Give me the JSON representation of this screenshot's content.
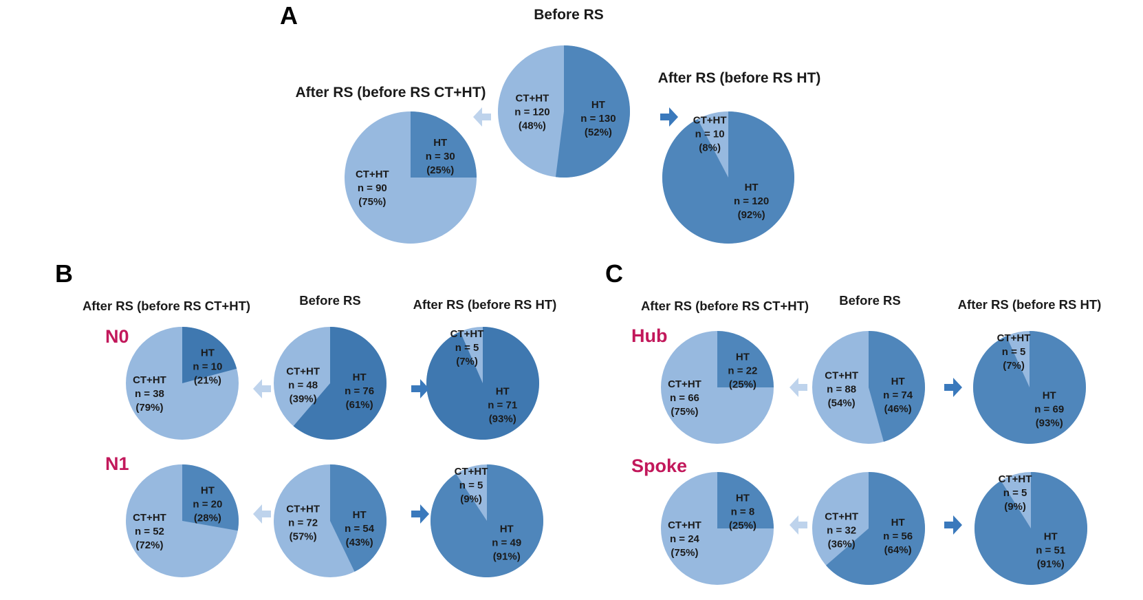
{
  "colors": {
    "ct_ht": "#97b9df",
    "ht": "#4f86bb",
    "ht_dark": "#3f78b0",
    "arrow_light": "#bed3ec",
    "arrow_dark": "#3a79bc",
    "group_label": "#c2185b"
  },
  "category_labels": {
    "ct_ht": "CT+HT",
    "ht": "HT"
  },
  "chart_data": [
    {
      "type": "pie",
      "panel": "A",
      "panel_label": "A",
      "group": "",
      "group_label": "",
      "pies": [
        {
          "key": "after_ct",
          "title": "After RS (before RS CT+HT)",
          "slices": [
            {
              "label": "CT+HT",
              "n": "n = 90",
              "pct": "(75%)",
              "value": 90,
              "percent": 75
            },
            {
              "label": "HT",
              "n": "n = 30",
              "pct": "(25%)",
              "value": 30,
              "percent": 25
            }
          ]
        },
        {
          "key": "before",
          "title": "Before RS",
          "slices": [
            {
              "label": "CT+HT",
              "n": "n = 120",
              "pct": "(48%)",
              "value": 120,
              "percent": 48
            },
            {
              "label": "HT",
              "n": "n = 130",
              "pct": "(52%)",
              "value": 130,
              "percent": 52
            }
          ]
        },
        {
          "key": "after_ht",
          "title": "After RS (before RS HT)",
          "slices": [
            {
              "label": "CT+HT",
              "n": "n = 10",
              "pct": "(8%)",
              "value": 10,
              "percent": 8
            },
            {
              "label": "HT",
              "n": "n = 120",
              "pct": "(92%)",
              "value": 120,
              "percent": 92
            }
          ]
        }
      ]
    },
    {
      "type": "pie",
      "panel": "B",
      "panel_label": "B",
      "group": "N0",
      "group_label": "N0",
      "pies": [
        {
          "key": "after_ct",
          "title": "After RS (before RS CT+HT)",
          "slices": [
            {
              "label": "CT+HT",
              "n": "n = 38",
              "pct": "(79%)",
              "value": 38,
              "percent": 79
            },
            {
              "label": "HT",
              "n": "n = 10",
              "pct": "(21%)",
              "value": 10,
              "percent": 21
            }
          ]
        },
        {
          "key": "before",
          "title": "Before RS",
          "slices": [
            {
              "label": "CT+HT",
              "n": "n = 48",
              "pct": "(39%)",
              "value": 48,
              "percent": 39
            },
            {
              "label": "HT",
              "n": "n = 76",
              "pct": "(61%)",
              "value": 76,
              "percent": 61
            }
          ]
        },
        {
          "key": "after_ht",
          "title": "After RS (before RS HT)",
          "slices": [
            {
              "label": "CT+HT",
              "n": "n = 5",
              "pct": "(7%)",
              "value": 5,
              "percent": 7
            },
            {
              "label": "HT",
              "n": "n = 71",
              "pct": "(93%)",
              "value": 71,
              "percent": 93
            }
          ]
        }
      ]
    },
    {
      "type": "pie",
      "panel": "B",
      "panel_label": "",
      "group": "N1",
      "group_label": "N1",
      "pies": [
        {
          "key": "after_ct",
          "title": "",
          "slices": [
            {
              "label": "CT+HT",
              "n": "n = 52",
              "pct": "(72%)",
              "value": 52,
              "percent": 72
            },
            {
              "label": "HT",
              "n": "n = 20",
              "pct": "(28%)",
              "value": 20,
              "percent": 28
            }
          ]
        },
        {
          "key": "before",
          "title": "",
          "slices": [
            {
              "label": "CT+HT",
              "n": "n = 72",
              "pct": "(57%)",
              "value": 72,
              "percent": 57
            },
            {
              "label": "HT",
              "n": "n = 54",
              "pct": "(43%)",
              "value": 54,
              "percent": 43
            }
          ]
        },
        {
          "key": "after_ht",
          "title": "",
          "slices": [
            {
              "label": "CT+HT",
              "n": "n = 5",
              "pct": "(9%)",
              "value": 5,
              "percent": 9
            },
            {
              "label": "HT",
              "n": "n = 49",
              "pct": "(91%)",
              "value": 49,
              "percent": 91
            }
          ]
        }
      ]
    },
    {
      "type": "pie",
      "panel": "C",
      "panel_label": "C",
      "group": "Hub",
      "group_label": "Hub",
      "pies": [
        {
          "key": "after_ct",
          "title": "After RS (before RS CT+HT)",
          "slices": [
            {
              "label": "CT+HT",
              "n": "n = 66",
              "pct": "(75%)",
              "value": 66,
              "percent": 75
            },
            {
              "label": "HT",
              "n": "n = 22",
              "pct": "(25%)",
              "value": 22,
              "percent": 25
            }
          ]
        },
        {
          "key": "before",
          "title": "Before RS",
          "slices": [
            {
              "label": "CT+HT",
              "n": "n = 88",
              "pct": "(54%)",
              "value": 88,
              "percent": 54
            },
            {
              "label": "HT",
              "n": "n = 74",
              "pct": "(46%)",
              "value": 74,
              "percent": 46
            }
          ]
        },
        {
          "key": "after_ht",
          "title": "After RS (before RS HT)",
          "slices": [
            {
              "label": "CT+HT",
              "n": "n = 5",
              "pct": "(7%)",
              "value": 5,
              "percent": 7
            },
            {
              "label": "HT",
              "n": "n = 69",
              "pct": "(93%)",
              "value": 69,
              "percent": 93
            }
          ]
        }
      ]
    },
    {
      "type": "pie",
      "panel": "C",
      "panel_label": "",
      "group": "Spoke",
      "group_label": "Spoke",
      "pies": [
        {
          "key": "after_ct",
          "title": "",
          "slices": [
            {
              "label": "CT+HT",
              "n": "n = 24",
              "pct": "(75%)",
              "value": 24,
              "percent": 75
            },
            {
              "label": "HT",
              "n": "n = 8",
              "pct": "(25%)",
              "value": 8,
              "percent": 25
            }
          ]
        },
        {
          "key": "before",
          "title": "",
          "slices": [
            {
              "label": "CT+HT",
              "n": "n = 32",
              "pct": "(36%)",
              "value": 32,
              "percent": 36
            },
            {
              "label": "HT",
              "n": "n = 56",
              "pct": "(64%)",
              "value": 56,
              "percent": 64
            }
          ]
        },
        {
          "key": "after_ht",
          "title": "",
          "slices": [
            {
              "label": "CT+HT",
              "n": "n = 5",
              "pct": "(9%)",
              "value": 5,
              "percent": 9
            },
            {
              "label": "HT",
              "n": "n = 51",
              "pct": "(91%)",
              "value": 51,
              "percent": 91
            }
          ]
        }
      ]
    }
  ]
}
